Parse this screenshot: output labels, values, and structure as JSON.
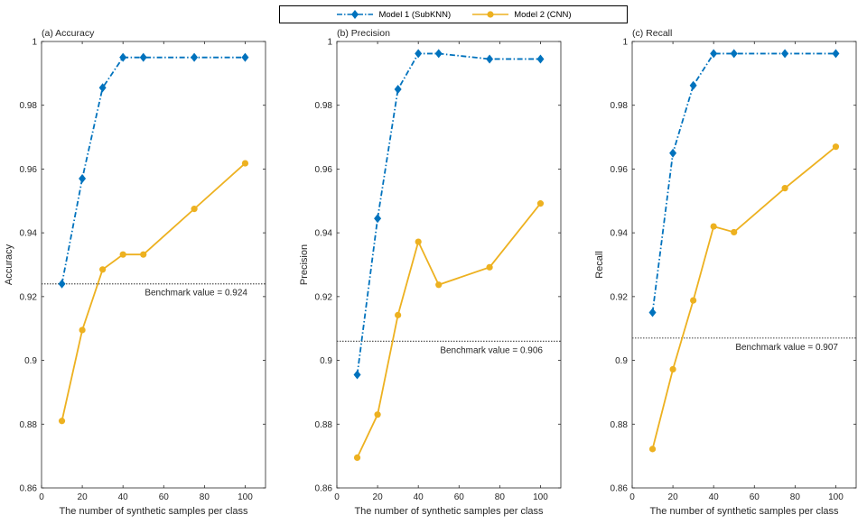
{
  "legend": {
    "entries": [
      {
        "label": "Model 1 (SubKNN)",
        "color": "#0072BD",
        "marker": "diamond",
        "line": "dash-dot"
      },
      {
        "label": "Model 2 (CNN)",
        "color": "#EDB120",
        "marker": "circle",
        "line": "solid"
      }
    ]
  },
  "chart_data": [
    {
      "type": "line",
      "title": "(a) Accuracy",
      "xlabel": "The number of synthetic samples per class",
      "ylabel": "Accuracy",
      "xlim": [
        0,
        110
      ],
      "ylim": [
        0.86,
        1
      ],
      "xticks": [
        0,
        20,
        40,
        60,
        80,
        100
      ],
      "yticks": [
        0.86,
        0.88,
        0.9,
        0.92,
        0.94,
        0.96,
        0.98,
        1
      ],
      "ytick_labels": [
        "0.86",
        "0.88",
        "0.9",
        "0.92",
        "0.94",
        "0.96",
        "0.98",
        "1"
      ],
      "x": [
        10,
        20,
        30,
        40,
        50,
        75,
        100
      ],
      "series": [
        {
          "name": "Model 1 (SubKNN)",
          "values": [
            0.924,
            0.957,
            0.9855,
            0.995,
            0.995,
            0.995,
            0.995
          ]
        },
        {
          "name": "Model 2 (CNN)",
          "values": [
            0.881,
            0.9095,
            0.9285,
            0.9332,
            0.9332,
            0.9475,
            0.9618
          ]
        }
      ],
      "benchmark": {
        "value": 0.924,
        "label": "Benchmark value = 0.924"
      },
      "grid": false
    },
    {
      "type": "line",
      "title": "(b) Precision",
      "xlabel": "The number of synthetic samples per class",
      "ylabel": "Precision",
      "xlim": [
        0,
        110
      ],
      "ylim": [
        0.86,
        1
      ],
      "xticks": [
        0,
        20,
        40,
        60,
        80,
        100
      ],
      "yticks": [
        0.86,
        0.88,
        0.9,
        0.92,
        0.94,
        0.96,
        0.98,
        1
      ],
      "ytick_labels": [
        "0.86",
        "0.88",
        "0.9",
        "0.92",
        "0.94",
        "0.96",
        "0.98",
        "1"
      ],
      "x": [
        10,
        20,
        30,
        40,
        50,
        75,
        100
      ],
      "series": [
        {
          "name": "Model 1 (SubKNN)",
          "values": [
            0.8955,
            0.9445,
            0.985,
            0.9962,
            0.9962,
            0.9945,
            0.9945
          ]
        },
        {
          "name": "Model 2 (CNN)",
          "values": [
            0.8695,
            0.883,
            0.9142,
            0.9372,
            0.9237,
            0.9292,
            0.9492
          ]
        }
      ],
      "benchmark": {
        "value": 0.906,
        "label": "Benchmark value = 0.906"
      },
      "grid": false
    },
    {
      "type": "line",
      "title": "(c) Recall",
      "xlabel": "The number of synthetic samples per class",
      "ylabel": "Recall",
      "xlim": [
        0,
        110
      ],
      "ylim": [
        0.86,
        1
      ],
      "xticks": [
        0,
        20,
        40,
        60,
        80,
        100
      ],
      "yticks": [
        0.86,
        0.88,
        0.9,
        0.92,
        0.94,
        0.96,
        0.98,
        1
      ],
      "ytick_labels": [
        "0.86",
        "0.88",
        "0.9",
        "0.92",
        "0.94",
        "0.96",
        "0.98",
        "1"
      ],
      "x": [
        10,
        20,
        30,
        40,
        50,
        75,
        100
      ],
      "series": [
        {
          "name": "Model 1 (SubKNN)",
          "values": [
            0.915,
            0.965,
            0.9862,
            0.9962,
            0.9962,
            0.9962,
            0.9962
          ]
        },
        {
          "name": "Model 2 (CNN)",
          "values": [
            0.8722,
            0.8972,
            0.9188,
            0.942,
            0.9402,
            0.954,
            0.967
          ]
        }
      ],
      "benchmark": {
        "value": 0.907,
        "label": "Benchmark value = 0.907"
      },
      "grid": false
    }
  ]
}
